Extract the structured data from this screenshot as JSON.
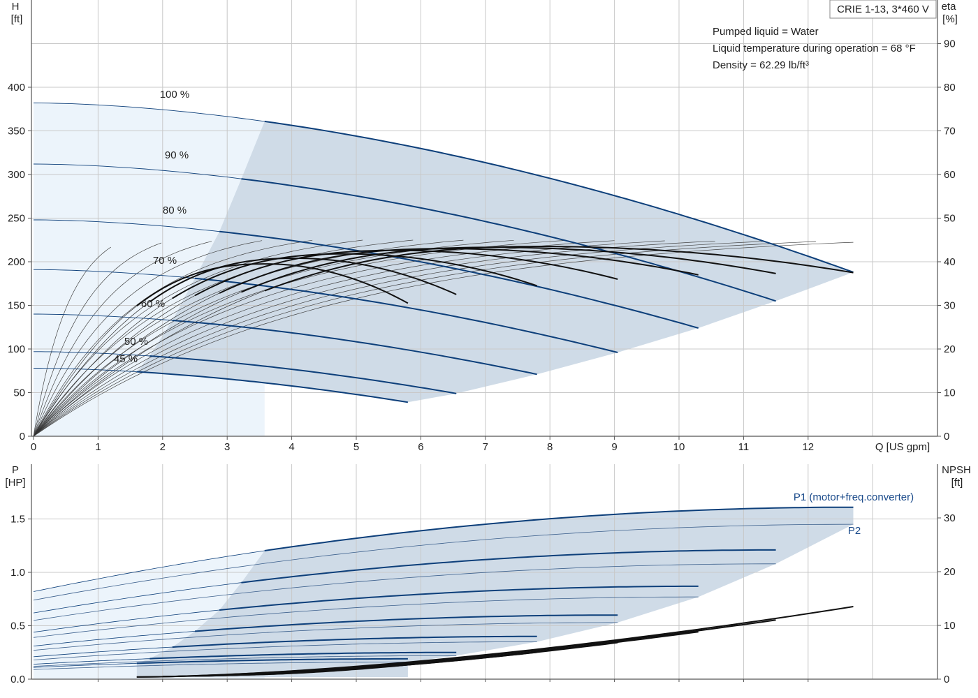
{
  "product_label": "CRIE 1-13, 3*460 V",
  "conditions": [
    "Pumped liquid = Water",
    "Liquid temperature during operation = 68 °F",
    "Density = 62.29 lb/ft³"
  ],
  "colors": {
    "blue_curve": "#0d3f7a",
    "black_curve": "#111111",
    "area_fill": "#cfdbe7",
    "light_fill": "#ecf4fb",
    "grid": "#c8c8c8"
  },
  "chart_data": [
    {
      "type": "line",
      "xlabel": "Q [US gpm]",
      "xlim": [
        0,
        13
      ],
      "x_ticks": [
        "0",
        "1",
        "2",
        "3",
        "4",
        "5",
        "6",
        "7",
        "8",
        "9",
        "10",
        "11",
        "12"
      ],
      "y_left": {
        "label_top": "H",
        "label_unit": "[ft]",
        "ylim": [
          0,
          400
        ],
        "ticks": [
          "0",
          "50",
          "100",
          "150",
          "200",
          "250",
          "300",
          "350",
          "400"
        ]
      },
      "y_right": {
        "label_top": "eta",
        "label_unit": "[%]",
        "ylim": [
          0,
          90
        ],
        "ticks": [
          "0",
          "10",
          "20",
          "30",
          "40",
          "50",
          "60",
          "70",
          "80",
          "90"
        ]
      },
      "grid": true,
      "speed_labels": [
        "100 %",
        "90 %",
        "80 %",
        "70 %",
        "60 %",
        "50 %",
        "45 %"
      ],
      "head_curves": [
        {
          "speed": "100 %",
          "h0": 382,
          "q_max": 12.7,
          "h_end": 188,
          "q_min_op": 3.58
        },
        {
          "speed": "90 %",
          "h0": 312,
          "q_max": 11.5,
          "h_end": 155,
          "q_min_op": 3.22
        },
        {
          "speed": "80 %",
          "h0": 248,
          "q_max": 10.3,
          "h_end": 124,
          "q_min_op": 2.88
        },
        {
          "speed": "70 %",
          "h0": 191,
          "q_max": 9.05,
          "h_end": 96,
          "q_min_op": 2.5
        },
        {
          "speed": "60 %",
          "h0": 140,
          "q_max": 7.8,
          "h_end": 71,
          "q_min_op": 2.15
        },
        {
          "speed": "50 %",
          "h0": 97,
          "q_max": 6.55,
          "h_end": 49,
          "q_min_op": 1.8
        },
        {
          "speed": "45 %",
          "h0": 78,
          "q_max": 5.8,
          "h_end": 39,
          "q_min_op": 1.6
        }
      ],
      "efficiency_curves": [
        {
          "q_max": 12.7,
          "eta_peak": 43.5,
          "eta_end": 37.5,
          "q_start": 3.58
        },
        {
          "q_max": 11.5,
          "eta_peak": 43.3,
          "eta_end": 37.3,
          "q_start": 3.22
        },
        {
          "q_max": 10.3,
          "eta_peak": 43.0,
          "eta_end": 37.0,
          "q_start": 2.88
        },
        {
          "q_max": 9.05,
          "eta_peak": 42.6,
          "eta_end": 36.0,
          "q_start": 2.5
        },
        {
          "q_max": 7.8,
          "eta_peak": 41.8,
          "eta_end": 34.5,
          "q_start": 2.15
        },
        {
          "q_max": 6.55,
          "eta_peak": 40.8,
          "eta_end": 32.5,
          "q_start": 1.8
        },
        {
          "q_max": 5.8,
          "eta_peak": 39.5,
          "eta_end": 30.5,
          "q_start": 1.6
        }
      ]
    },
    {
      "type": "line",
      "xlim": [
        0,
        13
      ],
      "y_left": {
        "label_top": "P",
        "label_unit": "[HP]",
        "ylim": [
          0,
          1.7
        ],
        "ticks": [
          "0.0",
          "0.5",
          "1.0",
          "1.5"
        ]
      },
      "y_right": {
        "label_top": "NPSH",
        "label_unit": "[ft]",
        "ylim": [
          0,
          34
        ],
        "ticks": [
          "0",
          "10",
          "20",
          "30"
        ]
      },
      "grid": true,
      "series_labels": [
        "P1 (motor+freq.converter)",
        "P2"
      ],
      "power_curves": [
        {
          "p1_0": 0.82,
          "p1_end": 1.61,
          "p2_0": 0.74,
          "p2_end": 1.45,
          "q_max": 12.7,
          "q_op": 3.58
        },
        {
          "p1_0": 0.62,
          "p1_end": 1.21,
          "p2_0": 0.55,
          "p2_end": 1.08,
          "q_max": 11.5,
          "q_op": 3.22
        },
        {
          "p1_0": 0.44,
          "p1_end": 0.87,
          "p2_0": 0.39,
          "p2_end": 0.77,
          "q_max": 10.3,
          "q_op": 2.88
        },
        {
          "p1_0": 0.31,
          "p1_end": 0.6,
          "p2_0": 0.27,
          "p2_end": 0.53,
          "q_max": 9.05,
          "q_op": 2.5
        },
        {
          "p1_0": 0.21,
          "p1_end": 0.4,
          "p2_0": 0.18,
          "p2_end": 0.35,
          "q_max": 7.8,
          "q_op": 2.15
        },
        {
          "p1_0": 0.14,
          "p1_end": 0.25,
          "p2_0": 0.12,
          "p2_end": 0.22,
          "q_max": 6.55,
          "q_op": 1.8
        },
        {
          "p1_0": 0.11,
          "p1_end": 0.19,
          "p2_0": 0.09,
          "p2_end": 0.16,
          "q_max": 5.8,
          "q_op": 1.6
        }
      ],
      "npsh_curves": [
        {
          "q_start": 1.6,
          "q_max": 12.7,
          "npsh_start": 0.4,
          "npsh_end": 13.5
        },
        {
          "q_start": 1.6,
          "q_max": 11.5,
          "npsh_start": 0.4,
          "npsh_end": 11.0
        },
        {
          "q_start": 2.0,
          "q_max": 10.3,
          "npsh_start": 0.5,
          "npsh_end": 8.8
        },
        {
          "q_start": 2.5,
          "q_max": 9.05,
          "npsh_start": 0.6,
          "npsh_end": 6.8
        },
        {
          "q_start": 2.5,
          "q_max": 7.8,
          "npsh_start": 0.6,
          "npsh_end": 5.0
        },
        {
          "q_start": 3.2,
          "q_max": 6.55,
          "npsh_start": 0.8,
          "npsh_end": 3.6
        },
        {
          "q_start": 3.2,
          "q_max": 5.8,
          "npsh_start": 0.8,
          "npsh_end": 2.8
        }
      ]
    }
  ]
}
